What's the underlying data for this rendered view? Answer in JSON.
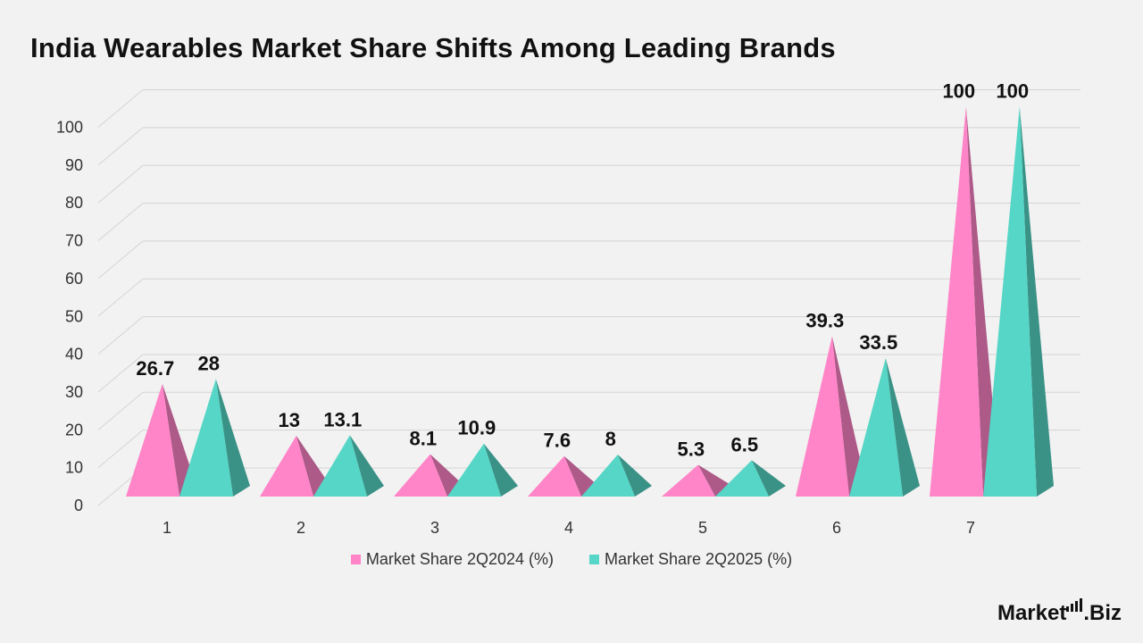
{
  "title": "India Wearables Market Share Shifts Among Leading Brands",
  "brand": {
    "text_left": "Market",
    "text_right": ".Biz"
  },
  "chart_data": {
    "type": "bar",
    "title": "India Wearables Market Share Shifts Among Leading Brands",
    "categories": [
      "1",
      "2",
      "3",
      "4",
      "5",
      "6",
      "7"
    ],
    "series": [
      {
        "name": "Market Share 2Q2024 (%)",
        "values": [
          26.7,
          13,
          8.1,
          7.6,
          5.3,
          39.3,
          100
        ],
        "color": "#ff85c8"
      },
      {
        "name": "Market Share 2Q2025 (%)",
        "values": [
          28,
          13.1,
          10.9,
          8,
          6.5,
          33.5,
          100
        ],
        "color": "#55d6c6"
      }
    ],
    "yticks": [
      0,
      10,
      20,
      30,
      40,
      50,
      60,
      70,
      80,
      90,
      100
    ],
    "ylim": [
      0,
      100
    ],
    "xlabel": "",
    "ylabel": "",
    "grid": true,
    "legend_position": "bottom",
    "style": "3d-pyramid"
  }
}
